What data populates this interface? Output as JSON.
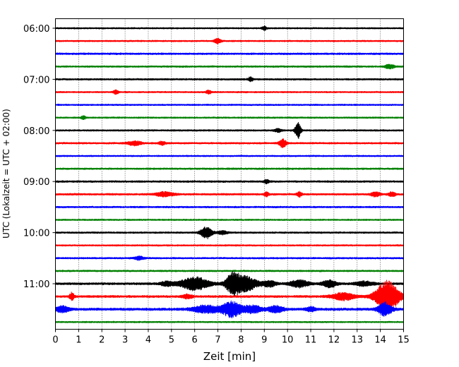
{
  "chart_data": {
    "type": "line",
    "chart_kind": "helicorder",
    "title": "",
    "xlabel": "Zeit  [min]",
    "ylabel": "UTC (Lokalzeit = UTC + 02:00)",
    "xlim": [
      0,
      15
    ],
    "x_ticks": [
      0,
      1,
      2,
      3,
      4,
      5,
      6,
      7,
      8,
      9,
      10,
      11,
      12,
      13,
      14,
      15
    ],
    "x_tick_labels": [
      "0",
      "1",
      "2",
      "3",
      "4",
      "5",
      "6",
      "7",
      "8",
      "9",
      "10",
      "11",
      "12",
      "13",
      "14",
      "15"
    ],
    "y_tick_labels": [
      "06:00",
      "07:00",
      "08:00",
      "09:00",
      "10:00",
      "11:00"
    ],
    "trace_interval_minutes": 15,
    "traces_per_hour": 4,
    "vertical_grid": "dotted",
    "color_cycle": [
      "#000000",
      "#ff0000",
      "#0000ff",
      "#008000"
    ],
    "series": [
      {
        "start": "06:00",
        "color": "#000000",
        "noise": 0.9,
        "events": [
          {
            "t": 9.0,
            "amp": 2.5,
            "dur": 0.1
          }
        ]
      },
      {
        "start": "06:15",
        "color": "#ff0000",
        "noise": 0.9,
        "events": [
          {
            "t": 7.0,
            "amp": 3.5,
            "dur": 0.15
          }
        ]
      },
      {
        "start": "06:30",
        "color": "#0000ff",
        "noise": 1.1,
        "events": []
      },
      {
        "start": "06:45",
        "color": "#008000",
        "noise": 1.0,
        "events": [
          {
            "t": 14.4,
            "amp": 3,
            "dur": 0.2
          }
        ]
      },
      {
        "start": "07:00",
        "color": "#000000",
        "noise": 1.0,
        "events": [
          {
            "t": 8.4,
            "amp": 3,
            "dur": 0.1
          }
        ]
      },
      {
        "start": "07:15",
        "color": "#ff0000",
        "noise": 0.9,
        "events": [
          {
            "t": 2.6,
            "amp": 3,
            "dur": 0.1
          },
          {
            "t": 6.6,
            "amp": 2.5,
            "dur": 0.1
          }
        ]
      },
      {
        "start": "07:30",
        "color": "#0000ff",
        "noise": 0.9,
        "events": []
      },
      {
        "start": "07:45",
        "color": "#008000",
        "noise": 0.9,
        "events": [
          {
            "t": 1.2,
            "amp": 2.5,
            "dur": 0.1
          }
        ]
      },
      {
        "start": "08:00",
        "color": "#000000",
        "noise": 1.0,
        "events": [
          {
            "t": 10.45,
            "amp": 12,
            "dur": 0.12
          },
          {
            "t": 9.6,
            "amp": 2.5,
            "dur": 0.15
          }
        ]
      },
      {
        "start": "08:15",
        "color": "#ff0000",
        "noise": 1.0,
        "events": [
          {
            "t": 3.4,
            "amp": 3,
            "dur": 0.3
          },
          {
            "t": 4.6,
            "amp": 2.5,
            "dur": 0.15
          },
          {
            "t": 9.8,
            "amp": 6,
            "dur": 0.15
          }
        ]
      },
      {
        "start": "08:30",
        "color": "#0000ff",
        "noise": 0.9,
        "events": []
      },
      {
        "start": "08:45",
        "color": "#008000",
        "noise": 1.0,
        "events": []
      },
      {
        "start": "09:00",
        "color": "#000000",
        "noise": 1.1,
        "events": [
          {
            "t": 9.1,
            "amp": 3,
            "dur": 0.1
          }
        ]
      },
      {
        "start": "09:15",
        "color": "#ff0000",
        "noise": 1.1,
        "events": [
          {
            "t": 4.7,
            "amp": 3,
            "dur": 0.4
          },
          {
            "t": 9.1,
            "amp": 3,
            "dur": 0.1
          },
          {
            "t": 10.5,
            "amp": 4,
            "dur": 0.1
          },
          {
            "t": 13.8,
            "amp": 3,
            "dur": 0.2
          },
          {
            "t": 14.5,
            "amp": 3,
            "dur": 0.15
          }
        ]
      },
      {
        "start": "09:30",
        "color": "#0000ff",
        "noise": 1.0,
        "events": []
      },
      {
        "start": "09:45",
        "color": "#008000",
        "noise": 0.9,
        "events": []
      },
      {
        "start": "10:00",
        "color": "#000000",
        "noise": 1.0,
        "events": [
          {
            "t": 6.5,
            "amp": 8,
            "dur": 0.25
          },
          {
            "t": 7.2,
            "amp": 2.5,
            "dur": 0.2
          }
        ]
      },
      {
        "start": "10:15",
        "color": "#ff0000",
        "noise": 0.9,
        "events": []
      },
      {
        "start": "10:30",
        "color": "#0000ff",
        "noise": 1.0,
        "events": [
          {
            "t": 3.6,
            "amp": 2.5,
            "dur": 0.2
          }
        ]
      },
      {
        "start": "10:45",
        "color": "#008000",
        "noise": 1.0,
        "events": []
      },
      {
        "start": "11:00",
        "color": "#000000",
        "noise": 1.3,
        "events": [
          {
            "t": 6.0,
            "amp": 9,
            "dur": 0.6
          },
          {
            "t": 7.65,
            "amp": 14,
            "dur": 0.3
          },
          {
            "t": 8.2,
            "amp": 10,
            "dur": 0.5
          },
          {
            "t": 9.2,
            "amp": 4,
            "dur": 0.3
          },
          {
            "t": 10.5,
            "amp": 5,
            "dur": 0.4
          },
          {
            "t": 11.8,
            "amp": 5,
            "dur": 0.3
          },
          {
            "t": 13.3,
            "amp": 3,
            "dur": 0.4
          },
          {
            "t": 4.8,
            "amp": 3,
            "dur": 0.3
          }
        ]
      },
      {
        "start": "11:15",
        "color": "#ff0000",
        "noise": 1.3,
        "events": [
          {
            "t": 0.7,
            "amp": 5,
            "dur": 0.1
          },
          {
            "t": 5.7,
            "amp": 3,
            "dur": 0.2
          },
          {
            "t": 12.4,
            "amp": 5,
            "dur": 0.5
          },
          {
            "t": 14.3,
            "amp": 22,
            "dur": 0.5
          }
        ]
      },
      {
        "start": "11:30",
        "color": "#0000ff",
        "noise": 1.5,
        "events": [
          {
            "t": 0.3,
            "amp": 4,
            "dur": 0.3
          },
          {
            "t": 6.5,
            "amp": 5,
            "dur": 0.6
          },
          {
            "t": 7.6,
            "amp": 11,
            "dur": 0.4
          },
          {
            "t": 8.5,
            "amp": 5,
            "dur": 0.4
          },
          {
            "t": 9.5,
            "amp": 5,
            "dur": 0.3
          },
          {
            "t": 11.0,
            "amp": 3,
            "dur": 0.2
          },
          {
            "t": 14.2,
            "amp": 9,
            "dur": 0.3
          }
        ]
      },
      {
        "start": "11:45",
        "color": "#008000",
        "noise": 0.9,
        "events": []
      }
    ]
  }
}
